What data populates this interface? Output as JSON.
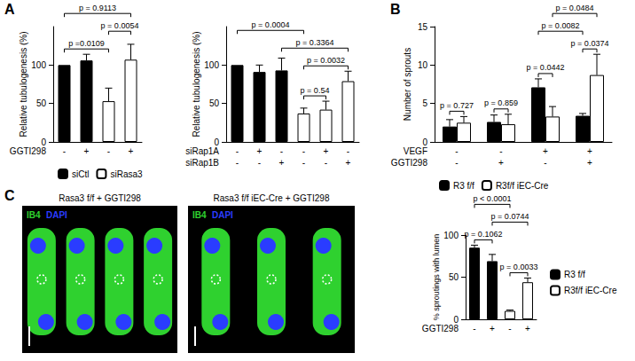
{
  "chart_data": [
    {
      "type": "bar",
      "panel": "A",
      "ylabel": "Relative tubulogenesis (%)",
      "ylim": [
        0,
        150
      ],
      "yticks": [
        0,
        50,
        100
      ],
      "grid": false,
      "legend": "bottom",
      "condition_rows": [
        {
          "label": "GGTI298",
          "values": [
            "-",
            "+",
            "-",
            "+"
          ]
        }
      ],
      "series": [
        {
          "name": "siCtl",
          "color": "#000000",
          "values": [
            100,
            106,
            null,
            null
          ],
          "errors": [
            null,
            8,
            null,
            null
          ]
        },
        {
          "name": "siRasa3",
          "color": "#ffffff",
          "values": [
            null,
            null,
            53,
            107
          ],
          "errors": [
            null,
            null,
            17,
            20
          ]
        }
      ],
      "comparisons": [
        {
          "label": "p =0.0109",
          "from": [
            0,
            0
          ],
          "to": [
            2,
            1
          ]
        },
        {
          "label": "p = 0.0054",
          "from": [
            2,
            1
          ],
          "to": [
            3,
            1
          ]
        },
        {
          "label": "p = 0.9113",
          "from": [
            0,
            0
          ],
          "to": [
            3,
            1
          ]
        }
      ]
    },
    {
      "type": "bar",
      "ylabel": "Relative tubulogenesis (%)",
      "ylim": [
        0,
        150
      ],
      "yticks": [
        0,
        50,
        100
      ],
      "grid": false,
      "condition_rows": [
        {
          "label": "siRap1A",
          "values": [
            "-",
            "+",
            "-",
            "-",
            "+",
            "-"
          ]
        },
        {
          "label": "siRap1B",
          "values": [
            "-",
            "-",
            "+",
            "-",
            "-",
            "+"
          ]
        }
      ],
      "series": [
        {
          "color": "#000000",
          "values": [
            100,
            91,
            93,
            null,
            null,
            null
          ],
          "errors": [
            null,
            9,
            16,
            null,
            null,
            null
          ]
        },
        {
          "color": "#ffffff",
          "values": [
            null,
            null,
            null,
            37,
            42,
            79
          ],
          "errors": [
            null,
            null,
            null,
            7,
            11,
            13
          ]
        }
      ],
      "comparisons": [
        {
          "label": "p = 0.54",
          "from": [
            3,
            1
          ],
          "to": [
            4,
            1
          ]
        },
        {
          "label": "p = 0.0032",
          "from": [
            3,
            1
          ],
          "to": [
            5,
            1
          ]
        },
        {
          "label": "p = 0.3364",
          "from": [
            2,
            0
          ],
          "to": [
            5,
            1
          ]
        },
        {
          "label": "p = 0.0004",
          "from": [
            0,
            0
          ],
          "to": [
            3,
            1
          ]
        }
      ]
    },
    {
      "type": "bar",
      "panel": "B",
      "ylabel": "Number of sprouts",
      "ylim": [
        0,
        15
      ],
      "yticks": [
        0,
        5,
        10,
        15
      ],
      "grid": false,
      "legend": "bottom",
      "condition_rows": [
        {
          "label": "VEGF",
          "values": [
            "-",
            "-",
            "+",
            "+"
          ]
        },
        {
          "label": "GGTI298",
          "values": [
            "-",
            "+",
            "-",
            "+"
          ]
        }
      ],
      "series": [
        {
          "name": "R3 f/f",
          "color": "#000000",
          "values": [
            2.0,
            2.6,
            7.1,
            3.4
          ],
          "errors": [
            0.9,
            0.9,
            1.1,
            0.3
          ]
        },
        {
          "name": "R3f/f iEC-Cre",
          "color": "#ffffff",
          "values": [
            2.5,
            2.3,
            3.3,
            8.7
          ],
          "errors": [
            0.8,
            1.3,
            1.3,
            2.7
          ]
        }
      ],
      "comparisons": [
        {
          "label": "p = 0.727",
          "from": [
            0,
            0
          ],
          "to": [
            0,
            1
          ]
        },
        {
          "label": "p = 0.859",
          "from": [
            1,
            0
          ],
          "to": [
            1,
            1
          ]
        },
        {
          "label": "p = 0.0442",
          "from": [
            2,
            0
          ],
          "to": [
            2,
            1
          ]
        },
        {
          "label": "p = 0.0374",
          "from": [
            3,
            0
          ],
          "to": [
            3,
            1
          ]
        },
        {
          "label": "p = 0.0082",
          "from": [
            2,
            0
          ],
          "to": [
            3,
            0
          ]
        },
        {
          "label": "p = 0.0484",
          "from": [
            2,
            1
          ],
          "to": [
            3,
            1
          ]
        }
      ]
    },
    {
      "type": "bar",
      "ylabel": "% sproutings with lumen",
      "ylim": [
        0,
        100
      ],
      "yticks": [
        0,
        50,
        100
      ],
      "grid": false,
      "legend": "right",
      "condition_rows": [
        {
          "label": "GGTI298",
          "values": [
            "-",
            "+",
            "-",
            "+"
          ]
        }
      ],
      "series": [
        {
          "name": "R3 f/f",
          "color": "#000000",
          "values": [
            85,
            69,
            null,
            null
          ],
          "errors": [
            3,
            8,
            null,
            null
          ]
        },
        {
          "name": "R3f/f iEC-Cre",
          "color": "#ffffff",
          "values": [
            null,
            null,
            10,
            44
          ],
          "errors": [
            null,
            null,
            1,
            5
          ]
        }
      ],
      "comparisons": [
        {
          "label": "p = 0.0033",
          "from": [
            2,
            1
          ],
          "to": [
            3,
            1
          ]
        },
        {
          "label": "p = 0.1062",
          "from": [
            0,
            0
          ],
          "to": [
            1,
            0
          ]
        },
        {
          "label": "p = 0.0744",
          "from": [
            1,
            0
          ],
          "to": [
            3,
            1
          ]
        },
        {
          "label": "p < 0.0001",
          "from": [
            0,
            0
          ],
          "to": [
            2,
            1
          ]
        }
      ]
    }
  ],
  "micrographs": {
    "panel": "C",
    "items": [
      {
        "title": "Rasa3 f/f + GGTI298",
        "channels": [
          {
            "name": "IB4",
            "color": "#2fd12f"
          },
          {
            "name": "DAPI",
            "color": "#2a3cff"
          }
        ]
      },
      {
        "title": "Rasa3 f/f iEC-Cre + GGTI298",
        "channels": [
          {
            "name": "IB4",
            "color": "#2fd12f"
          },
          {
            "name": "DAPI",
            "color": "#2a3cff"
          }
        ]
      }
    ]
  }
}
